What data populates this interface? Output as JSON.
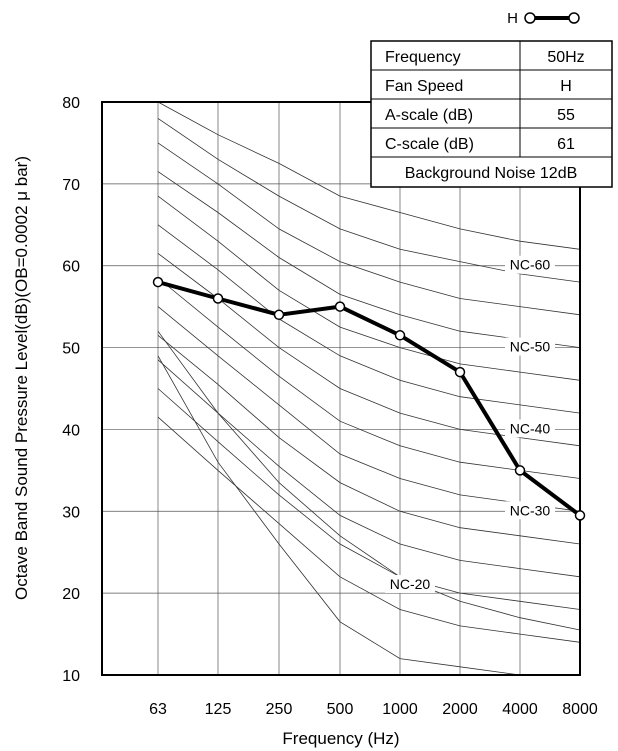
{
  "chart_data": {
    "type": "line",
    "xlabel": "Frequency (Hz)",
    "ylabel": "Octave Band Sound Pressure Level(dB)(OB=0.0002 μ bar)",
    "categories": [
      "63",
      "125",
      "250",
      "500",
      "1000",
      "2000",
      "4000",
      "8000"
    ],
    "ylim": [
      10,
      80
    ],
    "yticks": [
      10,
      20,
      30,
      40,
      50,
      60,
      70,
      80
    ],
    "grid": true,
    "series": [
      {
        "name": "H",
        "values": [
          58,
          56,
          54,
          55,
          51.5,
          47,
          35,
          29.5
        ],
        "color": "#000000"
      }
    ],
    "nc_curves": [
      {
        "values": [
          81,
          76,
          72.5,
          68.5,
          66.5,
          64.5,
          63,
          62
        ]
      },
      {
        "values": [
          78,
          73,
          68.5,
          64.5,
          62,
          60.5,
          59,
          58
        ]
      },
      {
        "values": [
          75,
          70,
          64.5,
          60.5,
          58,
          56,
          55,
          54
        ]
      },
      {
        "values": [
          71.5,
          66.5,
          61,
          56.5,
          54,
          52,
          51,
          50
        ]
      },
      {
        "values": [
          68.5,
          63,
          57,
          52.5,
          50,
          48,
          47,
          46
        ]
      },
      {
        "values": [
          65,
          59.5,
          53.5,
          49,
          46,
          44,
          43,
          42
        ]
      },
      {
        "values": [
          61.5,
          56,
          50,
          45,
          42,
          40,
          39,
          38
        ]
      },
      {
        "values": [
          58.5,
          52.5,
          46.5,
          41,
          38,
          36,
          35,
          34
        ]
      },
      {
        "values": [
          55,
          49,
          43,
          37,
          34,
          32,
          31,
          30
        ]
      },
      {
        "values": [
          51.5,
          45.5,
          39,
          33.5,
          30,
          28,
          27,
          26
        ]
      },
      {
        "values": [
          48.5,
          42,
          35.5,
          29.5,
          26,
          24,
          23,
          22
        ]
      },
      {
        "values": [
          45,
          38.5,
          32,
          26,
          22,
          20,
          19,
          18
        ]
      },
      {
        "values": [
          41.5,
          35,
          28.5,
          22,
          18,
          16,
          15,
          14
        ]
      },
      {
        "values": [
          52,
          42,
          33.5,
          27,
          22,
          19,
          17,
          15.5
        ]
      },
      {
        "values": [
          49,
          36,
          26,
          16.5,
          12,
          11,
          10,
          10
        ]
      }
    ],
    "nc_labels": [
      {
        "text": "NC-60",
        "x": "4000",
        "y": 60
      },
      {
        "text": "NC-50",
        "x": "4000",
        "y": 50
      },
      {
        "text": "NC-40",
        "x": "4000",
        "y": 40
      },
      {
        "text": "NC-30",
        "x": "4000",
        "y": 30
      },
      {
        "text": "NC-20",
        "x": "1000",
        "y": 21
      }
    ]
  },
  "legend": {
    "label": "H"
  },
  "info_table": {
    "rows": [
      {
        "label": "Frequency",
        "value": "50Hz"
      },
      {
        "label": "Fan Speed",
        "value": "H"
      },
      {
        "label": "A-scale (dB)",
        "value": "55"
      },
      {
        "label": "C-scale (dB)",
        "value": "61"
      }
    ],
    "footer": "Background Noise 12dB"
  }
}
